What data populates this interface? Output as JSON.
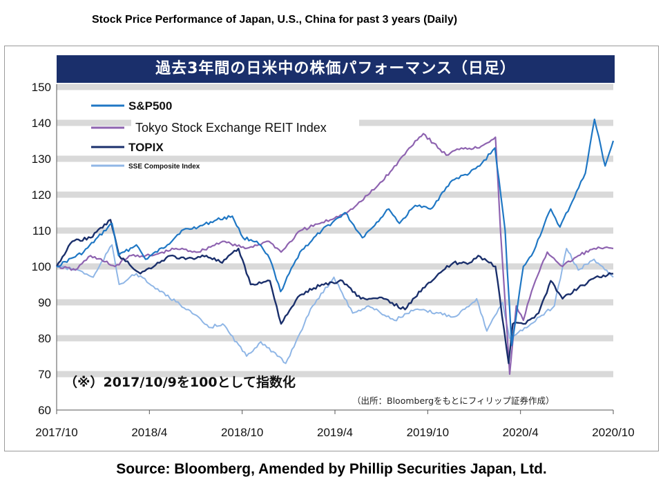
{
  "header": {
    "caption": "Stock Price Performance of Japan, U.S., China for past 3 years (Daily)"
  },
  "footer": {
    "source": "Source: Bloomberg, Amended by Phillip Securities Japan, Ltd."
  },
  "chart_data": {
    "type": "line",
    "title": "過去3年間の日米中の株価パフォーマンス（日足）",
    "note": "（※）2017/10/9を100として指数化",
    "credit": "（出所：Bloombergをもとにフィリップ証券作成）",
    "ylim": [
      60,
      150
    ],
    "yticks": [
      60,
      70,
      80,
      90,
      100,
      110,
      120,
      130,
      140,
      150
    ],
    "xticks": [
      "2017/10",
      "2018/4",
      "2018/10",
      "2019/4",
      "2019/10",
      "2020/4",
      "2020/10"
    ],
    "xlim": [
      "2017-10-09",
      "2020-10-09"
    ],
    "grid": "horizontal bands",
    "legend_position": "top-left",
    "series": [
      {
        "name": "S&P500",
        "color": "#1f77c4",
        "x": [
          "2017-10-09",
          "2017-12-01",
          "2018-01-26",
          "2018-02-08",
          "2018-03-15",
          "2018-04-02",
          "2018-05-15",
          "2018-06-12",
          "2018-07-15",
          "2018-08-20",
          "2018-09-20",
          "2018-10-11",
          "2018-11-07",
          "2018-12-03",
          "2018-12-24",
          "2019-01-31",
          "2019-03-15",
          "2019-04-30",
          "2019-06-03",
          "2019-07-25",
          "2019-08-15",
          "2019-09-15",
          "2019-10-15",
          "2019-11-27",
          "2019-12-31",
          "2020-01-20",
          "2020-02-19",
          "2020-03-10",
          "2020-03-23",
          "2020-04-15",
          "2020-05-01",
          "2020-06-08",
          "2020-06-26",
          "2020-07-20",
          "2020-08-15",
          "2020-09-02",
          "2020-09-23",
          "2020-10-09"
        ],
        "y": [
          100,
          104,
          112,
          103,
          106,
          102,
          106,
          110,
          111,
          113,
          114,
          108,
          107,
          102,
          93,
          104,
          110,
          115,
          108,
          116,
          112,
          117,
          116,
          124,
          126,
          128,
          133,
          110,
          78,
          100,
          103,
          116,
          111,
          118,
          126,
          141,
          128,
          135
        ]
      },
      {
        "name": "Tokyo Stock Exchange REIT Index",
        "color": "#8e63b0",
        "x": [
          "2017-10-09",
          "2017-11-15",
          "2017-12-15",
          "2018-02-01",
          "2018-03-01",
          "2018-04-15",
          "2018-06-01",
          "2018-07-15",
          "2018-09-01",
          "2018-10-15",
          "2018-12-01",
          "2018-12-25",
          "2019-02-01",
          "2019-04-01",
          "2019-05-15",
          "2019-06-30",
          "2019-08-01",
          "2019-09-15",
          "2019-10-01",
          "2019-11-15",
          "2019-12-15",
          "2020-01-15",
          "2020-02-20",
          "2020-03-01",
          "2020-03-19",
          "2020-04-01",
          "2020-04-15",
          "2020-05-01",
          "2020-06-01",
          "2020-07-01",
          "2020-08-01",
          "2020-09-01",
          "2020-10-09"
        ],
        "y": [
          100,
          99,
          103,
          100,
          103,
          103,
          105,
          104,
          107,
          105,
          107,
          104,
          110,
          113,
          116,
          122,
          127,
          135,
          137,
          131,
          133,
          133,
          136,
          110,
          70,
          89,
          85,
          93,
          104,
          100,
          103,
          105,
          105
        ]
      },
      {
        "name": "TOPIX",
        "color": "#1a2f6b",
        "x": [
          "2017-10-09",
          "2017-11-09",
          "2017-12-15",
          "2018-01-23",
          "2018-02-09",
          "2018-03-23",
          "2018-05-21",
          "2018-06-20",
          "2018-07-31",
          "2018-08-31",
          "2018-10-02",
          "2018-10-26",
          "2018-12-03",
          "2018-12-25",
          "2019-01-31",
          "2019-03-15",
          "2019-04-25",
          "2019-05-31",
          "2019-07-15",
          "2019-08-26",
          "2019-09-30",
          "2019-10-31",
          "2019-11-29",
          "2019-12-31",
          "2020-01-17",
          "2020-02-20",
          "2020-03-17",
          "2020-03-25",
          "2020-04-15",
          "2020-05-15",
          "2020-06-08",
          "2020-07-01",
          "2020-08-01",
          "2020-09-04",
          "2020-10-09"
        ],
        "y": [
          100,
          107,
          108,
          113,
          103,
          98,
          103,
          102,
          103,
          101,
          105,
          95,
          96,
          84,
          92,
          95,
          96,
          91,
          91,
          88,
          94,
          98,
          101,
          101,
          103,
          100,
          73,
          84,
          84,
          87,
          96,
          91,
          94,
          97,
          98
        ]
      },
      {
        "name": "SSE Composite Index",
        "color": "#8fb6e6",
        "x": [
          "2017-10-09",
          "2017-11-20",
          "2017-12-20",
          "2018-01-26",
          "2018-02-09",
          "2018-03-15",
          "2018-04-30",
          "2018-06-25",
          "2018-08-05",
          "2018-09-01",
          "2018-10-18",
          "2018-11-15",
          "2019-01-03",
          "2019-02-25",
          "2019-04-08",
          "2019-05-15",
          "2019-06-15",
          "2019-08-05",
          "2019-09-15",
          "2019-10-31",
          "2019-12-02",
          "2020-01-14",
          "2020-02-03",
          "2020-03-05",
          "2020-03-19",
          "2020-04-30",
          "2020-06-15",
          "2020-07-09",
          "2020-08-01",
          "2020-09-01",
          "2020-10-09"
        ],
        "y": [
          100,
          99,
          97,
          106,
          95,
          98,
          93,
          88,
          83,
          84,
          75,
          79,
          73,
          89,
          97,
          87,
          89,
          85,
          88,
          87,
          86,
          91,
          82,
          90,
          80,
          84,
          89,
          105,
          99,
          102,
          97
        ]
      }
    ]
  }
}
